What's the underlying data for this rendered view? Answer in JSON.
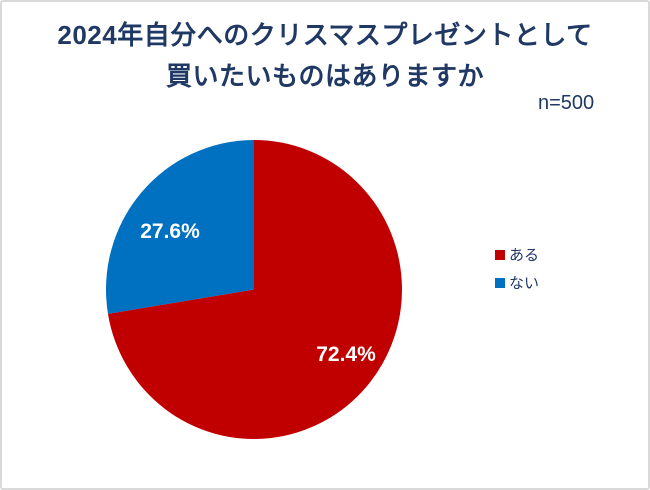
{
  "frame": {
    "background": "#FFFFFF",
    "border_color": "#D9D9D9"
  },
  "header": {
    "title_line1": "2024年自分へのクリスマスプレゼントとして",
    "title_line2": "買いたいものはありますか",
    "sample_size_label": "n=500",
    "text_color": "#1F3864"
  },
  "chart_data": {
    "type": "pie",
    "title": "2024年自分へのクリスマスプレゼントとして買いたいものはありますか",
    "sample_size": 500,
    "categories": [
      "ある",
      "ない"
    ],
    "values": [
      72.4,
      27.6
    ],
    "unit": "%",
    "colors": [
      "#C00000",
      "#0070C0"
    ],
    "data_labels": [
      "72.4%",
      "27.6%"
    ],
    "data_label_color": "#FFFFFF",
    "start_angle_deg": 0,
    "direction": "clockwise",
    "legend_position": "right",
    "legend": [
      {
        "label": "ある",
        "color": "#C00000"
      },
      {
        "label": "ない",
        "color": "#0070C0"
      }
    ]
  }
}
